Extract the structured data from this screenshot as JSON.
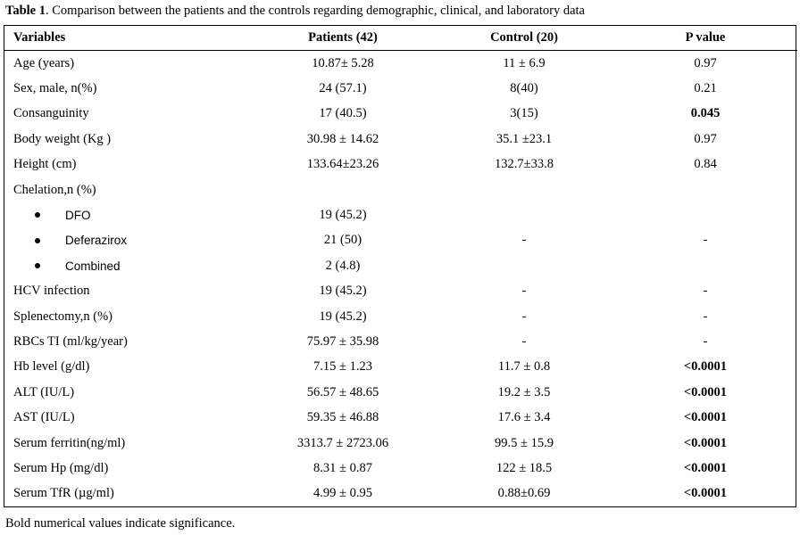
{
  "caption": {
    "label": "Table 1",
    "text": ". Comparison between the patients and the controls regarding demographic, clinical, and laboratory data"
  },
  "headers": [
    "Variables",
    "Patients (42)",
    "Control (20)",
    "P value"
  ],
  "rows": [
    {
      "variable": "Age (years)",
      "patients": "10.87± 5.28",
      "control": "11 ± 6.9",
      "p": "0.97",
      "p_bold": false
    },
    {
      "variable": "Sex, male, n(%)",
      "patients": "24 (57.1)",
      "control": "8(40)",
      "p": "0.21",
      "p_bold": false
    },
    {
      "variable": "Consanguinity",
      "patients": "17 (40.5)",
      "control": "3(15)",
      "p": "0.045",
      "p_bold": true
    },
    {
      "variable": "Body weight (Kg )",
      "patients": "30.98 ± 14.62",
      "control": "35.1 ±23.1",
      "p": "0.97",
      "p_bold": false
    },
    {
      "variable": "Height (cm)",
      "patients": "133.64±23.26",
      "control": "132.7±33.8",
      "p": "0.84",
      "p_bold": false
    },
    {
      "variable": "Chelation,n (%)",
      "patients": "",
      "control": "",
      "p": "",
      "p_bold": false
    },
    {
      "variable": "DFO",
      "bullet": true,
      "patients": "19 (45.2)",
      "control": "",
      "p": "",
      "p_bold": false
    },
    {
      "variable": "Deferazirox",
      "bullet": true,
      "patients": "21 (50)",
      "control": "-",
      "p": "-",
      "p_bold": false
    },
    {
      "variable": "Combined",
      "bullet": true,
      "patients": "2 (4.8)",
      "control": "",
      "p": "",
      "p_bold": false
    },
    {
      "variable": "HCV infection",
      "patients": "19 (45.2)",
      "control": "-",
      "p": "-",
      "p_bold": false
    },
    {
      "variable": "Splenectomy,n (%)",
      "patients": "19 (45.2)",
      "control": "-",
      "p": "-",
      "p_bold": false
    },
    {
      "variable": "RBCs TI (ml/kg/year)",
      "patients": "75.97 ± 35.98",
      "control": "-",
      "p": "-",
      "p_bold": false
    },
    {
      "variable": "Hb level (g/dl)",
      "patients": "7.15 ± 1.23",
      "control": "11.7 ± 0.8",
      "p": "<0.0001",
      "p_bold": true
    },
    {
      "variable": "ALT (IU/L)",
      "patients": "56.57 ± 48.65",
      "control": "19.2 ± 3.5",
      "p": "<0.0001",
      "p_bold": true
    },
    {
      "variable": "AST (IU/L)",
      "patients": "59.35 ± 46.88",
      "control": "17.6 ± 3.4",
      "p": "<0.0001",
      "p_bold": true
    },
    {
      "variable": "Serum ferritin(ng/ml)",
      "patients": "3313.7 ± 2723.06",
      "control": "99.5 ± 15.9",
      "p": "<0.0001",
      "p_bold": true
    },
    {
      "variable": "Serum Hp (mg/dl)",
      "patients": "8.31 ± 0.87",
      "control": "122 ± 18.5",
      "p": "<0.0001",
      "p_bold": true
    },
    {
      "variable": "Serum TfR (µg/ml)",
      "patients": "4.99 ± 0.95",
      "control": "0.88±0.69",
      "p": "<0.0001",
      "p_bold": true
    }
  ],
  "footnote": "Bold numerical values indicate significance."
}
